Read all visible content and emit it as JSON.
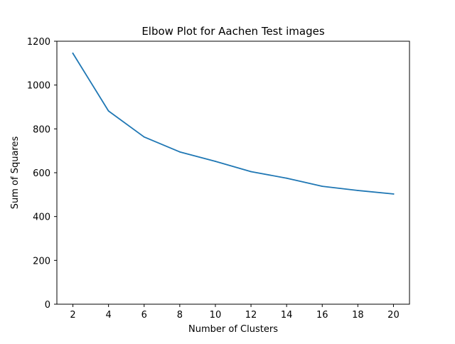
{
  "chart_data": {
    "type": "line",
    "title": "Elbow Plot for Aachen Test images",
    "xlabel": "Number of Clusters",
    "ylabel": "Sum of Squares",
    "x": [
      2,
      4,
      6,
      8,
      10,
      12,
      14,
      16,
      18,
      20
    ],
    "series": [
      {
        "values": [
          1145,
          882,
          763,
          695,
          652,
          605,
          575,
          538,
          519,
          503
        ],
        "color": "#1f77b4"
      }
    ],
    "xlim": [
      1.1,
      20.9
    ],
    "ylim": [
      0,
      1200
    ],
    "xticks": [
      2,
      4,
      6,
      8,
      10,
      12,
      14,
      16,
      18,
      20
    ],
    "yticks": [
      0,
      200,
      400,
      600,
      800,
      1000,
      1200
    ],
    "grid": false,
    "legend": "none"
  }
}
